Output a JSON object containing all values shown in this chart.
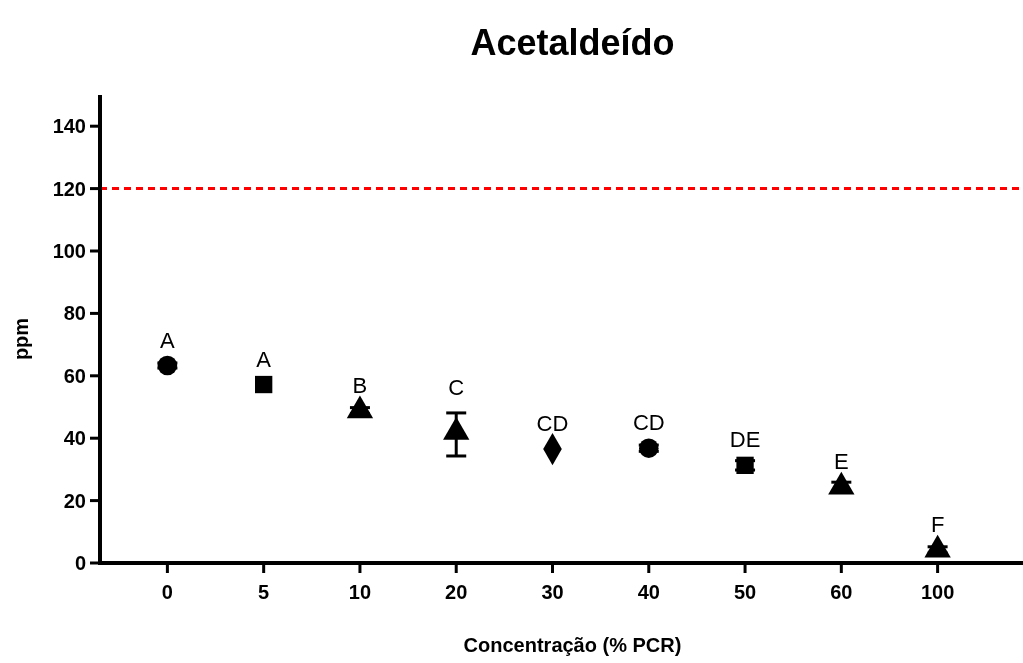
{
  "chart_data": {
    "type": "scatter",
    "title": "Acetaldeído",
    "xlabel": "Concentração (% PCR)",
    "ylabel": "ppm",
    "categories": [
      "0",
      "5",
      "10",
      "20",
      "30",
      "40",
      "50",
      "60",
      "100"
    ],
    "series": [
      {
        "x": [
          "0"
        ],
        "values": [
          63.3
        ],
        "errors": [
          0.8
        ],
        "color": "#000000",
        "marker": "circle"
      },
      {
        "x": [
          "5"
        ],
        "values": [
          57.2
        ],
        "errors": [
          null
        ],
        "color": "#000000",
        "marker": "square"
      },
      {
        "x": [
          "10"
        ],
        "values": [
          48.8
        ],
        "errors": [
          1
        ],
        "color": "#000000",
        "marker": "triangle"
      },
      {
        "x": [
          "20"
        ],
        "values": [
          41.9
        ],
        "errors": [
          [
            34.3,
            48.1
          ]
        ],
        "color": "#000000",
        "marker": "triangle"
      },
      {
        "x": [
          "30"
        ],
        "values": [
          36.5
        ],
        "errors": [
          null
        ],
        "color": "#000000",
        "marker": "diamond"
      },
      {
        "x": [
          "40"
        ],
        "values": [
          36.8
        ],
        "errors": [
          1
        ],
        "color": "#000000",
        "marker": "circle"
      },
      {
        "x": [
          "50"
        ],
        "values": [
          31.3
        ],
        "errors": [
          1.5
        ],
        "color": "#000000",
        "marker": "square"
      },
      {
        "x": [
          "60"
        ],
        "values": [
          24.4
        ],
        "errors": [
          1.5
        ],
        "color": "#000000",
        "marker": "triangle"
      },
      {
        "x": [
          "100"
        ],
        "values": [
          4.2
        ],
        "errors": [
          1
        ],
        "color": "#000000",
        "marker": "triangle"
      }
    ],
    "ylim": [
      0,
      150
    ],
    "yticks": [
      0,
      20,
      40,
      60,
      80,
      100,
      120,
      140
    ],
    "ref_lines": [
      {
        "axis": "y",
        "value": 120,
        "color": "#ff0000",
        "line_style": "dashed"
      }
    ],
    "annotations": [
      {
        "text": "A",
        "x": "0",
        "y": 63.3
      },
      {
        "text": "A",
        "x": "5",
        "y": 57.2
      },
      {
        "text": "B",
        "x": "10",
        "y": 48.8
      },
      {
        "text": "C",
        "x": "20",
        "y": 48.1
      },
      {
        "text": "CD",
        "x": "30",
        "y": 36.5
      },
      {
        "text": "CD",
        "x": "40",
        "y": 36.8
      },
      {
        "text": "DE",
        "x": "50",
        "y": 31.3
      },
      {
        "text": "E",
        "x": "60",
        "y": 24.4
      },
      {
        "text": "F",
        "x": "100",
        "y": 4.2
      }
    ],
    "grid": false
  }
}
